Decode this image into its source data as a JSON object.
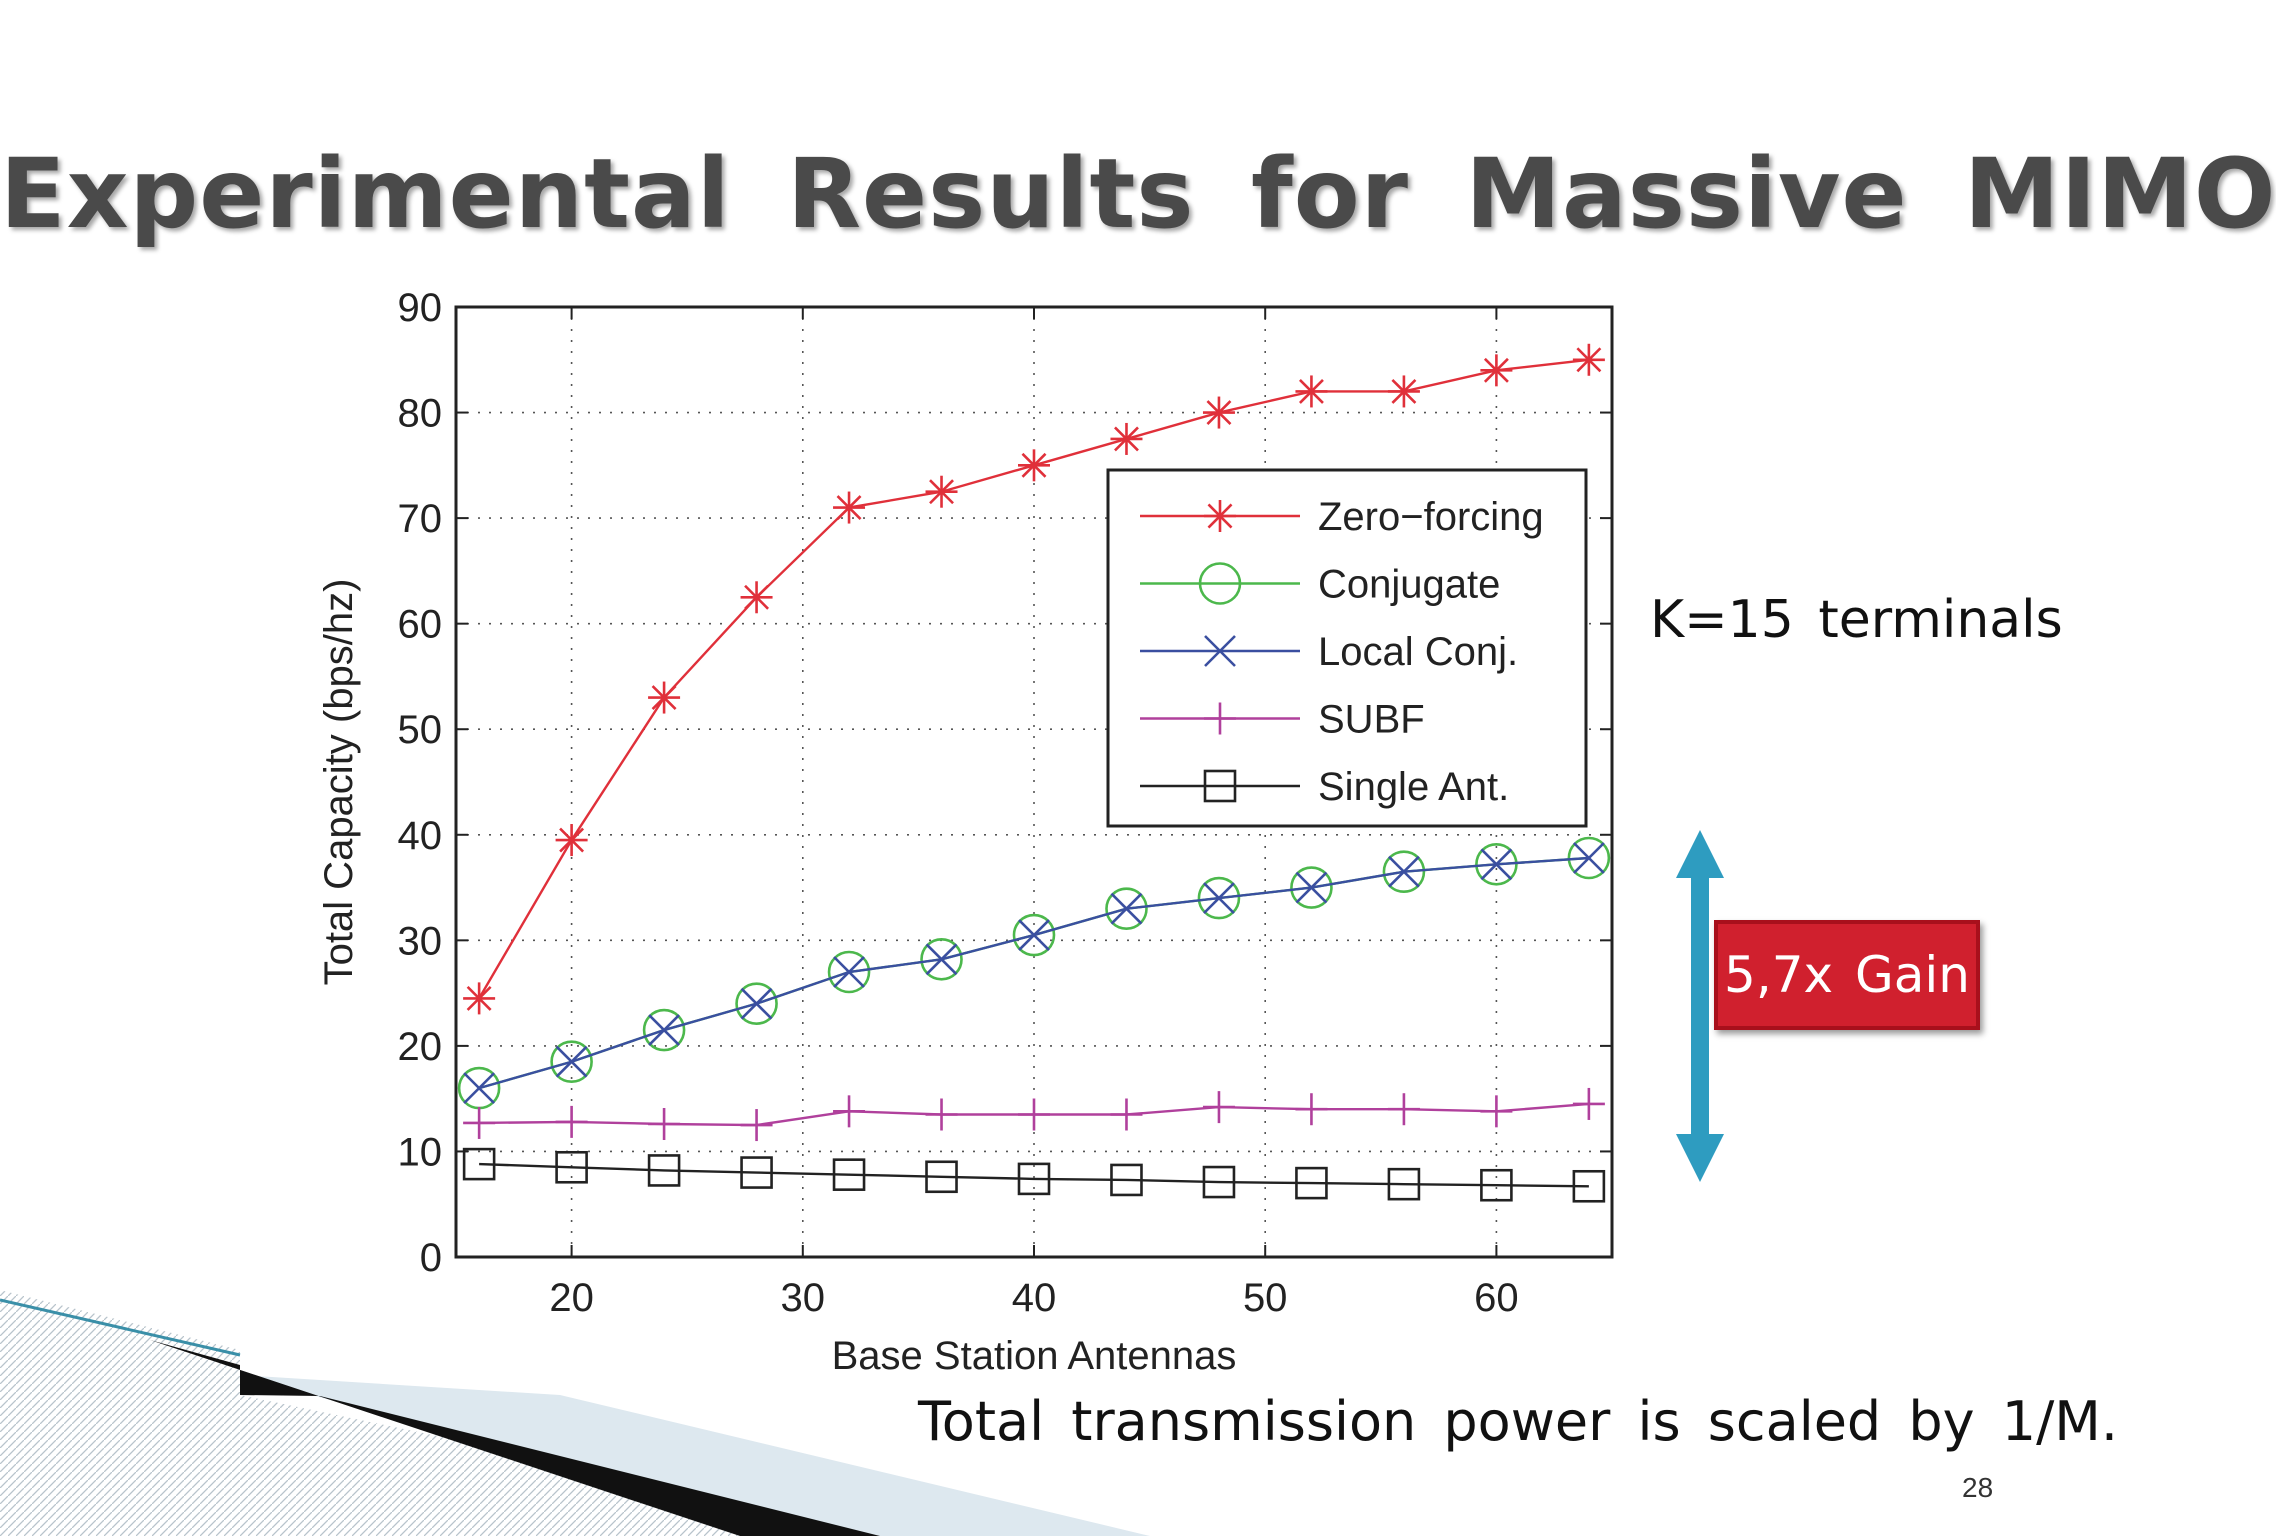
{
  "slide": {
    "title": "Experimental Results for Massive MIMO",
    "terminals_note": "K=15 terminals",
    "gain_label": "5,7x Gain",
    "footnote": "Total transmission power is scaled by 1/M.",
    "page_number": "28"
  },
  "colors": {
    "title_text": "#4a4a4a",
    "gain_box": "#d0202e",
    "gain_arrow": "#2e9cc0",
    "zero_forcing": "#e0303a",
    "conjugate": "#4cb84c",
    "local_conj": "#3a4fa0",
    "subf": "#b0409c",
    "single_ant": "#222222"
  },
  "chart_data": {
    "type": "line",
    "title": "",
    "xlabel": "Base Station Antennas",
    "ylabel": "Total Capacity (bps/hz)",
    "xlim": [
      15,
      65
    ],
    "ylim": [
      0,
      90
    ],
    "xticks": [
      20,
      30,
      40,
      50,
      60
    ],
    "yticks": [
      0,
      10,
      20,
      30,
      40,
      50,
      60,
      70,
      80,
      90
    ],
    "grid": true,
    "legend_position": "upper-right",
    "x": [
      16,
      20,
      24,
      28,
      32,
      36,
      40,
      44,
      48,
      52,
      56,
      60,
      64
    ],
    "series": [
      {
        "name": "Zero−forcing",
        "marker": "asterisk",
        "color": "#e0303a",
        "values": [
          24.5,
          39.5,
          53,
          62.5,
          71,
          72.5,
          75,
          77.5,
          80,
          82,
          82,
          84,
          85
        ]
      },
      {
        "name": "Conjugate",
        "marker": "circle",
        "color": "#4cb84c",
        "values": [
          16,
          18.5,
          21.5,
          24,
          27,
          28.2,
          30.5,
          33,
          34,
          35,
          36.5,
          37.2,
          37.8
        ]
      },
      {
        "name": "Local Conj.",
        "marker": "x",
        "color": "#3a4fa0",
        "values": [
          16,
          18.5,
          21.5,
          24,
          27,
          28.2,
          30.5,
          33,
          34,
          35,
          36.5,
          37.2,
          37.8
        ]
      },
      {
        "name": "SUBF",
        "marker": "plus",
        "color": "#b0409c",
        "values": [
          12.7,
          12.8,
          12.6,
          12.5,
          13.8,
          13.5,
          13.5,
          13.5,
          14.2,
          14,
          14,
          13.8,
          14.5
        ]
      },
      {
        "name": "Single Ant.",
        "marker": "square",
        "color": "#222222",
        "values": [
          8.8,
          8.5,
          8.2,
          8,
          7.8,
          7.6,
          7.4,
          7.3,
          7.1,
          7,
          6.9,
          6.8,
          6.7
        ]
      }
    ]
  }
}
